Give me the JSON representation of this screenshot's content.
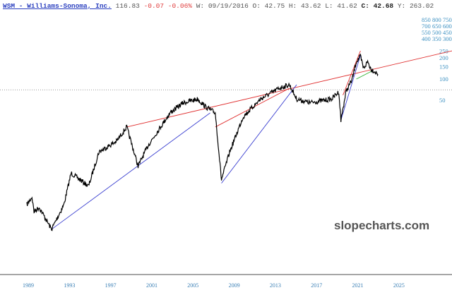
{
  "header": {
    "symbol_title": "WSM - Williams-Sonoma, Inc.",
    "last": "116.83",
    "change": "-0.07",
    "change_pct": "-0.06%",
    "date_label": "W:",
    "date": "09/19/2016",
    "open_label": "O:",
    "open": "42.75",
    "high_label": "H:",
    "high": "43.62",
    "low_label": "L:",
    "low": "41.62",
    "close_label": "C:",
    "close": "42.68",
    "y_label": "Y:",
    "y": "263.02"
  },
  "watermark": "slopecharts.com",
  "chart_data": {
    "type": "line",
    "y_scale": "log",
    "grid": false,
    "x_ticks": [
      "1989",
      "1993",
      "1997",
      "2001",
      "2005",
      "2009",
      "2013",
      "2017",
      "2021",
      "2025"
    ],
    "y_ticks": [
      "850",
      "800",
      "750",
      "700",
      "650",
      "600",
      "550",
      "500",
      "450",
      "400",
      "350",
      "300",
      "250",
      "200",
      "150",
      "100",
      "50"
    ],
    "reference_line": {
      "value": 70,
      "style": "dotted",
      "color": "#999999"
    },
    "price_series": [
      [
        1989.0,
        1.64
      ],
      [
        1989.5,
        2.1
      ],
      [
        1989.7,
        1.3
      ],
      [
        1990.2,
        1.5
      ],
      [
        1991.4,
        0.73
      ],
      [
        1992.6,
        1.64
      ],
      [
        1993.3,
        4.6
      ],
      [
        1995.0,
        3.0
      ],
      [
        1996.0,
        9.2
      ],
      [
        1997.7,
        13
      ],
      [
        1998.7,
        20.8
      ],
      [
        1999.8,
        5.8
      ],
      [
        2000.8,
        11.5
      ],
      [
        2002.9,
        33
      ],
      [
        2004.2,
        46
      ],
      [
        2005.6,
        52
      ],
      [
        2006.3,
        41
      ],
      [
        2007.3,
        33
      ],
      [
        2007.9,
        3.7
      ],
      [
        2008.7,
        9.2
      ],
      [
        2010.0,
        29
      ],
      [
        2011.7,
        52
      ],
      [
        2013.5,
        74
      ],
      [
        2014.5,
        83
      ],
      [
        2015.2,
        52
      ],
      [
        2016.5,
        46
      ],
      [
        2018.6,
        52
      ],
      [
        2019.3,
        66
      ],
      [
        2019.5,
        26
      ],
      [
        2020.0,
        66
      ],
      [
        2020.6,
        100
      ],
      [
        2021.0,
        178
      ],
      [
        2021.4,
        209
      ],
      [
        2021.7,
        141
      ],
      [
        2022.1,
        178
      ],
      [
        2022.4,
        141
      ],
      [
        2023.1,
        117
      ]
    ],
    "trendlines": [
      {
        "color": "#e03030",
        "from": [
          1998.7,
          20.8
        ],
        "to": [
          2030.3,
          252
        ]
      },
      {
        "color": "#e03030",
        "from": [
          2007.3,
          20.8
        ],
        "to": [
          2014.5,
          74
        ]
      },
      {
        "color": "#e03030",
        "from": [
          2019.7,
          59
        ],
        "to": [
          2021.4,
          252
        ]
      },
      {
        "color": "#3a3fd0",
        "from": [
          1991.4,
          0.73
        ],
        "to": [
          2006.8,
          33
        ]
      },
      {
        "color": "#3a3fd0",
        "from": [
          2007.9,
          3.3
        ],
        "to": [
          2015.2,
          83
        ]
      },
      {
        "color": "#3a3fd0",
        "from": [
          2019.5,
          26
        ],
        "to": [
          2021.4,
          219
        ]
      },
      {
        "color": "#30b030",
        "from": [
          2021.0,
          100
        ],
        "to": [
          2022.6,
          132
        ]
      }
    ]
  }
}
